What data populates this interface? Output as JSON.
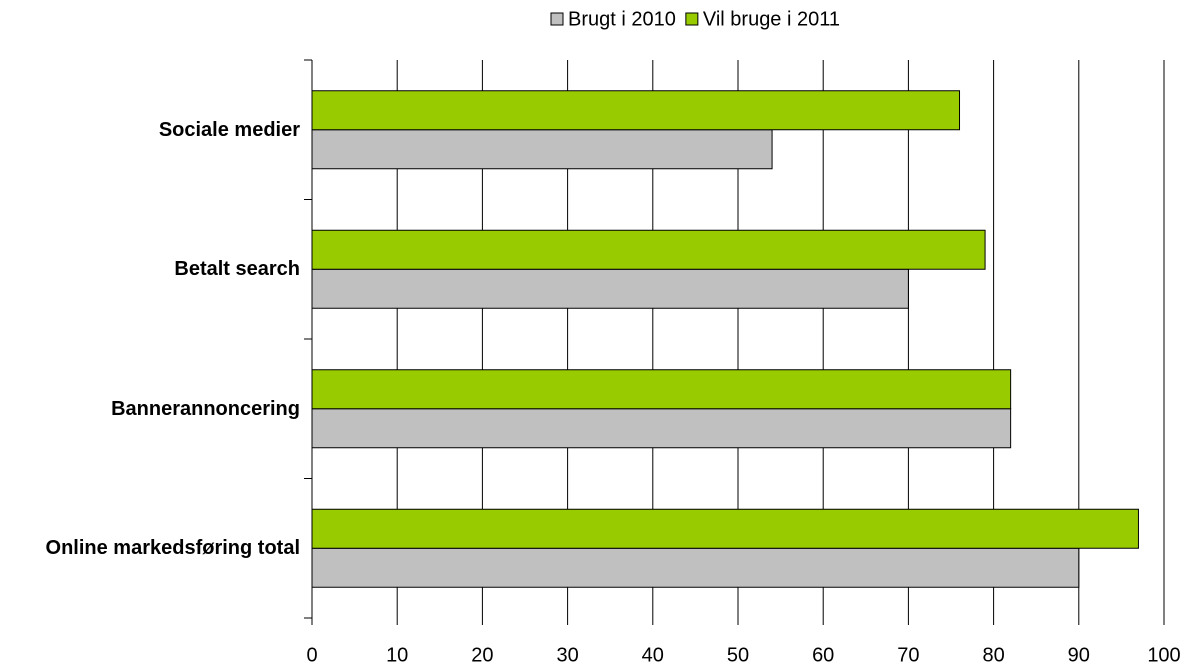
{
  "chart_data": {
    "type": "hbar",
    "categories": [
      "Sociale medier",
      "Betalt search",
      "Bannerannoncering",
      "Online markedsføring total"
    ],
    "series": [
      {
        "name": "Brugt i 2010",
        "color": "#c0c0c0",
        "values": [
          54,
          70,
          82,
          90
        ]
      },
      {
        "name": "Vil bruge i 2011",
        "color": "#99cc00",
        "values": [
          76,
          79,
          82,
          97
        ]
      }
    ],
    "xlim": [
      0,
      100
    ],
    "xticks": [
      0,
      10,
      20,
      30,
      40,
      50,
      60,
      70,
      80,
      90,
      100
    ],
    "grid": true,
    "legend": "top"
  }
}
